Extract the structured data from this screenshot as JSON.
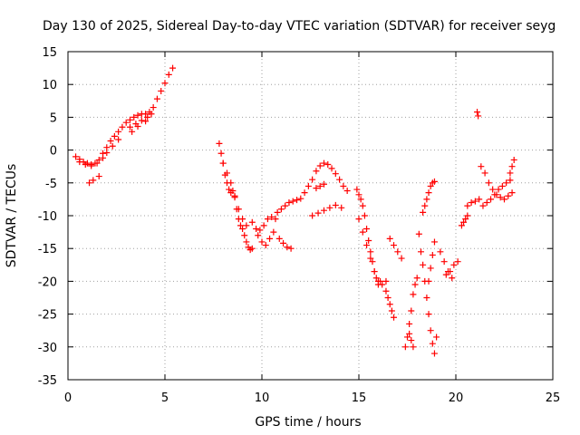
{
  "chart_data": {
    "type": "scatter",
    "title": "Day 130 of 2025, Sidereal Day-to-day VTEC variation (SDTVAR) for receiver seyg",
    "xlabel": "GPS time / hours",
    "ylabel": "SDTVAR / TECUs",
    "xlim": [
      0,
      25
    ],
    "ylim": [
      -35,
      15
    ],
    "xticks": [
      "0",
      "5",
      "10",
      "15",
      "20",
      "25"
    ],
    "yticks": [
      "15",
      "10",
      "5",
      "0",
      "-5",
      "-10",
      "-15",
      "-20",
      "-25",
      "-30",
      "-35"
    ],
    "grid": true,
    "marker": "plus",
    "color": "#ff0000",
    "series": [
      {
        "x": [
          0.4,
          0.6,
          0.8,
          1.0,
          1.2,
          1.4,
          1.6,
          1.8,
          2.0,
          2.2,
          2.4,
          2.6,
          2.8,
          3.0,
          3.2,
          3.4,
          3.6,
          3.8,
          4.0,
          4.2,
          4.4,
          4.6,
          4.8,
          5.0,
          5.2,
          5.4,
          0.6,
          0.9,
          1.2,
          1.5,
          1.8,
          2.0,
          2.3,
          2.6,
          1.1,
          1.3,
          1.6,
          3.2,
          3.5,
          3.8,
          4.1,
          4.3,
          3.3,
          3.6,
          4.0,
          7.8,
          7.9,
          8.0,
          8.1,
          8.2,
          8.3,
          8.4,
          8.5,
          8.6,
          8.7,
          8.8,
          8.9,
          9.0,
          9.1,
          9.2,
          9.3,
          9.4,
          9.5,
          8.0,
          8.2,
          8.4,
          8.6,
          8.8,
          9.0,
          9.2,
          9.5,
          9.7,
          9.9,
          10.1,
          10.3,
          10.5,
          10.7,
          9.8,
          10.0,
          10.2,
          10.4,
          10.6,
          10.8,
          11.0,
          11.2,
          11.4,
          11.6,
          11.8,
          12.0,
          12.2,
          10.9,
          11.1,
          11.3,
          11.5,
          12.4,
          12.6,
          12.8,
          13.0,
          13.2,
          13.4,
          13.6,
          13.8,
          14.0,
          14.2,
          14.4,
          12.6,
          12.9,
          13.2,
          13.5,
          13.8,
          14.1,
          12.8,
          13.0,
          13.2,
          14.9,
          15.0,
          15.1,
          15.2,
          15.3,
          15.4,
          15.5,
          15.6,
          15.7,
          15.8,
          15.9,
          16.0,
          16.1,
          15.0,
          15.2,
          15.4,
          15.6,
          15.8,
          16.0,
          16.2,
          16.4,
          16.4,
          16.5,
          16.6,
          16.7,
          16.8,
          16.6,
          16.8,
          17.0,
          17.2,
          17.4,
          17.5,
          17.6,
          17.7,
          17.8,
          17.9,
          18.0,
          17.6,
          17.7,
          17.8,
          18.1,
          18.2,
          18.3,
          18.4,
          18.5,
          18.6,
          18.7,
          18.8,
          18.9,
          19.0,
          18.3,
          18.4,
          18.5,
          18.6,
          18.7,
          18.8,
          18.9,
          18.6,
          18.7,
          18.8,
          18.9,
          19.2,
          19.4,
          19.6,
          19.8,
          19.5,
          19.7,
          19.9,
          20.1,
          20.3,
          20.4,
          20.5,
          20.6,
          20.6,
          20.8,
          21.0,
          21.2,
          21.1,
          21.15,
          21.3,
          21.5,
          21.7,
          21.9,
          22.1,
          22.3,
          22.5,
          22.7,
          22.9,
          21.4,
          21.6,
          21.8,
          22.0,
          22.2,
          22.4,
          22.6,
          22.8,
          22.8,
          22.9,
          23.0
        ],
        "y": [
          -1.0,
          -1.4,
          -1.8,
          -2.0,
          -2.2,
          -2.0,
          -1.5,
          -0.5,
          0.4,
          1.4,
          2.1,
          2.8,
          3.5,
          4.2,
          4.6,
          5.0,
          5.3,
          5.5,
          5.5,
          5.8,
          6.5,
          7.8,
          9.0,
          10.2,
          11.5,
          12.5,
          -1.8,
          -2.2,
          -2.4,
          -2.0,
          -1.2,
          -0.4,
          0.6,
          1.6,
          -5.0,
          -4.6,
          -4.0,
          3.5,
          4.0,
          4.5,
          5.0,
          5.5,
          2.8,
          3.6,
          4.4,
          1.0,
          -0.5,
          -2.0,
          -3.8,
          -5.0,
          -6.0,
          -6.5,
          -6.2,
          -7.2,
          -9.0,
          -10.5,
          -11.5,
          -12.0,
          -13.0,
          -14.0,
          -14.8,
          -15.2,
          -15.0,
          -2.0,
          -3.5,
          -5.0,
          -7.0,
          -9.0,
          -10.5,
          -11.5,
          -11.0,
          -12.0,
          -12.2,
          -11.5,
          -10.5,
          -10.2,
          -10.5,
          -13.0,
          -14.0,
          -14.5,
          -13.5,
          -12.5,
          -9.5,
          -9.0,
          -8.5,
          -8.0,
          -7.8,
          -7.6,
          -7.4,
          -6.5,
          -13.5,
          -14.2,
          -14.8,
          -15.0,
          -5.5,
          -4.5,
          -3.2,
          -2.4,
          -2.0,
          -2.2,
          -2.8,
          -3.6,
          -4.5,
          -5.5,
          -6.2,
          -10.0,
          -9.6,
          -9.2,
          -8.8,
          -8.4,
          -8.8,
          -5.8,
          -5.5,
          -5.2,
          -6.0,
          -6.8,
          -7.5,
          -8.5,
          -10.0,
          -12.0,
          -13.8,
          -15.5,
          -17.0,
          -18.5,
          -19.5,
          -20.5,
          -20.0,
          -10.5,
          -12.5,
          -14.5,
          -16.5,
          -18.5,
          -20.0,
          -20.5,
          -20.0,
          -21.5,
          -22.5,
          -23.5,
          -24.5,
          -25.5,
          -13.5,
          -14.5,
          -15.5,
          -16.5,
          -30.0,
          -28.5,
          -26.5,
          -24.5,
          -22.0,
          -20.5,
          -19.5,
          -28.0,
          -29.0,
          -30.0,
          -12.8,
          -15.5,
          -17.5,
          -20.0,
          -22.5,
          -25.0,
          -27.5,
          -29.5,
          -31.0,
          -28.5,
          -9.5,
          -8.5,
          -7.5,
          -6.5,
          -5.5,
          -5.0,
          -4.8,
          -20.0,
          -18.0,
          -16.0,
          -14.0,
          -15.5,
          -17.0,
          -18.5,
          -19.5,
          -19.0,
          -18.5,
          -17.5,
          -17.0,
          -11.5,
          -11.0,
          -10.5,
          -10.0,
          -8.5,
          -8.0,
          -7.8,
          -7.5,
          5.8,
          5.2,
          -2.5,
          -3.5,
          -5.0,
          -6.0,
          -6.8,
          -7.2,
          -7.5,
          -7.0,
          -6.5,
          -8.5,
          -8.0,
          -7.5,
          -6.8,
          -6.0,
          -5.5,
          -5.0,
          -4.6,
          -3.5,
          -2.5,
          -1.5
        ]
      }
    ]
  }
}
